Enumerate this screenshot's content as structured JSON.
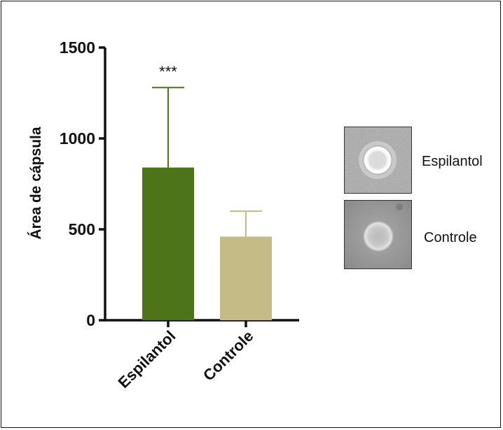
{
  "chart_data": {
    "type": "bar",
    "categories": [
      "Espilantol",
      "Controle"
    ],
    "values": [
      840,
      460
    ],
    "errors": [
      440,
      140
    ],
    "ylabel": "Área de cápsula",
    "xlabel": "",
    "ylim": [
      0,
      1500
    ],
    "yticks": [
      0,
      500,
      1000,
      1500
    ],
    "annotations": [
      {
        "category": "Espilantol",
        "text": "***"
      }
    ],
    "colors": [
      "#4e7419",
      "#c4bb86"
    ],
    "error_colors": [
      "#4e7419",
      "#c4bb86"
    ]
  },
  "thumbnails": [
    {
      "label": "Espilantol",
      "style": "granular-ring"
    },
    {
      "label": "Controle",
      "style": "smooth-ring"
    }
  ]
}
